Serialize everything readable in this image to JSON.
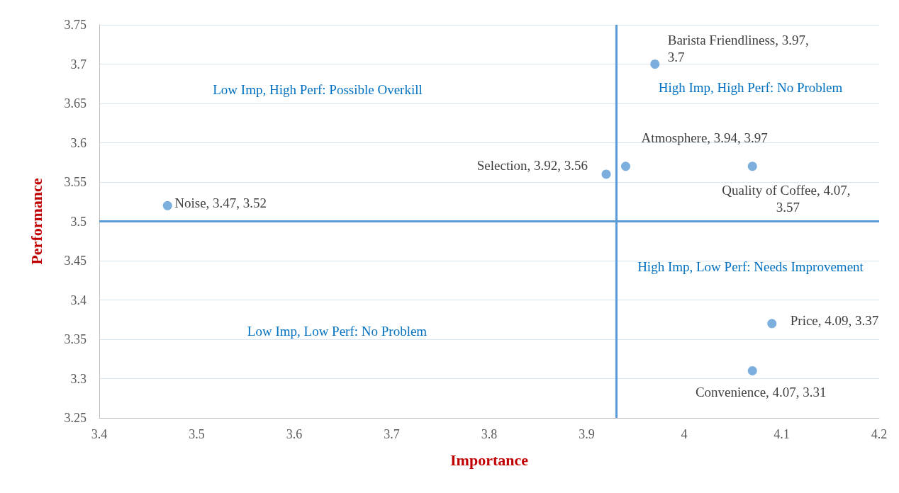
{
  "chart_data": {
    "type": "scatter",
    "xlabel": "Importance",
    "ylabel": "Performance",
    "x": [
      3.47,
      3.92,
      3.94,
      3.97,
      4.07,
      4.09,
      4.07
    ],
    "series": [
      {
        "color": "#5b9bd5",
        "values": [
          3.52,
          3.56,
          3.57,
          3.7,
          3.57,
          3.37,
          3.31
        ]
      }
    ],
    "xlim": [
      3.4,
      4.2
    ],
    "xticks": [
      3.4,
      3.5,
      3.6,
      3.7,
      3.8,
      3.9,
      4,
      4.1,
      4.2
    ],
    "ylim": [
      3.25,
      3.75
    ],
    "yticks": [
      3.25,
      3.3,
      3.35,
      3.4,
      3.45,
      3.5,
      3.55,
      3.6,
      3.65,
      3.7,
      3.75
    ],
    "grid": "y",
    "marker": "circle",
    "ref_lines": [
      {
        "axis": "x",
        "value": 3.93,
        "color": "#5b9bd5"
      },
      {
        "axis": "y",
        "value": 3.5,
        "color": "#5b9bd5"
      }
    ],
    "annotations": [
      {
        "text": "Noise, 3.47, 3.52",
        "x": 3.47,
        "y": 3.52
      },
      {
        "text": "Selection, 3.92, 3.56",
        "x": 3.92,
        "y": 3.56
      },
      {
        "text": "Atmosphere, 3.94, 3.97",
        "x": 3.94,
        "y": 3.57
      },
      {
        "text": "Barista Friendliness, 3.97, 3.7",
        "x": 3.97,
        "y": 3.7
      },
      {
        "text": "Quality of Coffee, 4.07, 3.57",
        "x": 4.07,
        "y": 3.57
      },
      {
        "text": "Price, 4.09, 3.37",
        "x": 4.09,
        "y": 3.37
      },
      {
        "text": "Convenience, 4.07, 3.31",
        "x": 4.07,
        "y": 3.31
      },
      "Low Imp, High Perf: Possible Overkill",
      "High Imp, High Perf: No Problem",
      "High Imp, Low Perf: Needs Improvement",
      "Low Imp, Low Perf: No Problem"
    ]
  }
}
